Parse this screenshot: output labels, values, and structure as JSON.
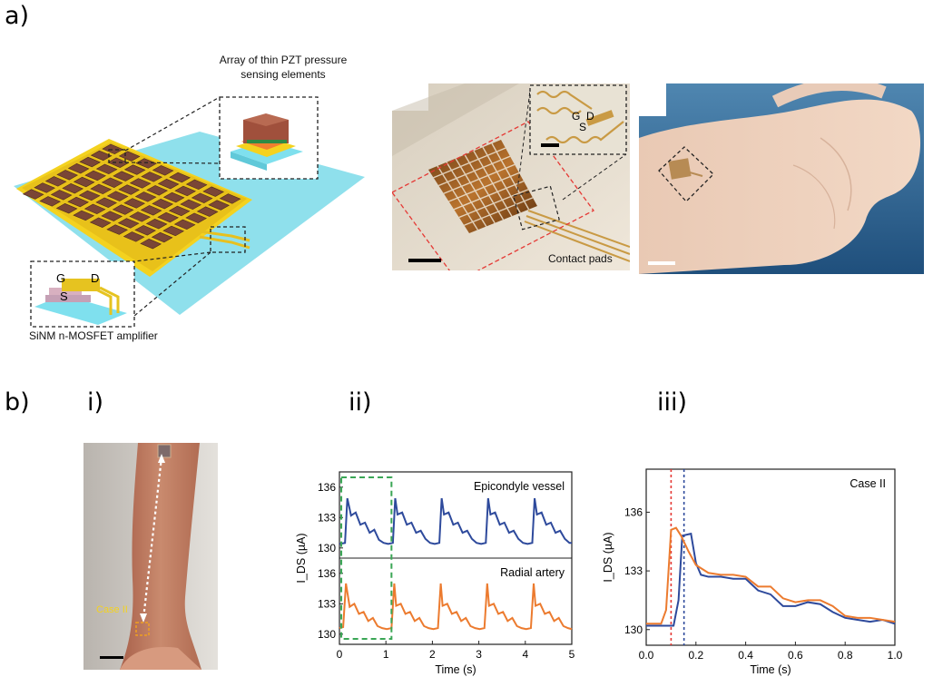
{
  "panel_a": {
    "label": "a)",
    "schematic": {
      "callout_top": [
        "Array of thin PZT pressure",
        "sensing elements"
      ],
      "callout_bottom": "SiNM n-MOSFET amplifier",
      "terminal_g": "G",
      "terminal_d": "D",
      "terminal_s": "S"
    },
    "photo_device": {
      "inset_g": "G",
      "inset_d": "D",
      "inset_s": "S",
      "caption": "Contact pads"
    }
  },
  "panel_b": {
    "label": "b)",
    "i": {
      "label": "i)",
      "annotation": "Case II"
    },
    "ii": {
      "label": "ii)"
    },
    "iii": {
      "label": "iii)"
    }
  },
  "colors": {
    "blue": "#2e4a9c",
    "orange": "#ec7b2f",
    "green_dash": "#3aa655",
    "red_dash": "#e53935"
  },
  "chart_data": [
    {
      "type": "line",
      "panel": "b-ii-top",
      "annotation": "Epicondyle vessel",
      "xlabel": "Time (s)",
      "ylabel": "I_DS (µA)",
      "xlim": [
        0,
        5
      ],
      "ylim": [
        129,
        137.5
      ],
      "yticks": [
        130,
        133,
        136
      ],
      "xticks": [
        0,
        1,
        2,
        3,
        4,
        5
      ],
      "series": [
        {
          "color": "#2e4a9c",
          "x": [
            0,
            0.12,
            0.17,
            0.25,
            0.35,
            0.45,
            0.55,
            0.65,
            0.75,
            0.85,
            0.95,
            1.05,
            1.15,
            1.2,
            1.25,
            1.35,
            1.45,
            1.55,
            1.65,
            1.75,
            1.85,
            1.95,
            2.05,
            2.15,
            2.2,
            2.25,
            2.35,
            2.45,
            2.55,
            2.65,
            2.75,
            2.85,
            2.95,
            3.05,
            3.15,
            3.2,
            3.25,
            3.35,
            3.45,
            3.55,
            3.65,
            3.75,
            3.85,
            3.95,
            4.05,
            4.15,
            4.2,
            4.25,
            4.35,
            4.45,
            4.55,
            4.65,
            4.75,
            4.85,
            4.95,
            5.0
          ],
          "y": [
            130.4,
            130.5,
            134.9,
            133.2,
            133.5,
            132.3,
            132.5,
            131.5,
            131.8,
            130.8,
            130.5,
            130.4,
            130.5,
            134.9,
            133.3,
            133.5,
            132.3,
            132.5,
            131.5,
            131.7,
            130.9,
            130.5,
            130.4,
            130.5,
            134.9,
            133.3,
            133.5,
            132.3,
            132.5,
            131.5,
            131.7,
            130.9,
            130.5,
            130.4,
            130.5,
            134.9,
            133.3,
            133.5,
            132.3,
            132.5,
            131.5,
            131.7,
            130.9,
            130.5,
            130.4,
            130.5,
            134.9,
            133.3,
            133.5,
            132.3,
            132.5,
            131.5,
            131.7,
            130.9,
            130.5,
            130.5
          ]
        }
      ]
    },
    {
      "type": "line",
      "panel": "b-ii-bottom",
      "annotation": "Radial artery",
      "xlabel": "Time (s)",
      "ylabel": "I_DS (µA)",
      "xlim": [
        0,
        5
      ],
      "ylim": [
        129,
        137.5
      ],
      "yticks": [
        130,
        133,
        136
      ],
      "xticks": [
        0,
        1,
        2,
        3,
        4,
        5
      ],
      "series": [
        {
          "color": "#ec7b2f",
          "x": [
            0,
            0.08,
            0.14,
            0.22,
            0.32,
            0.42,
            0.52,
            0.62,
            0.72,
            0.82,
            0.92,
            1.02,
            1.12,
            1.18,
            1.22,
            1.32,
            1.42,
            1.52,
            1.62,
            1.72,
            1.82,
            1.92,
            2.02,
            2.12,
            2.18,
            2.22,
            2.32,
            2.42,
            2.52,
            2.62,
            2.72,
            2.82,
            2.92,
            3.02,
            3.12,
            3.18,
            3.22,
            3.32,
            3.42,
            3.52,
            3.62,
            3.72,
            3.82,
            3.92,
            4.02,
            4.12,
            4.18,
            4.22,
            4.32,
            4.42,
            4.52,
            4.62,
            4.72,
            4.82,
            4.92,
            5.0
          ],
          "y": [
            130.6,
            130.7,
            135.0,
            132.7,
            133.0,
            132.0,
            132.2,
            131.3,
            131.6,
            130.8,
            130.6,
            130.5,
            130.6,
            135.0,
            132.8,
            133.0,
            132.0,
            132.2,
            131.3,
            131.6,
            130.8,
            130.6,
            130.5,
            130.6,
            135.0,
            132.8,
            133.0,
            132.0,
            132.2,
            131.3,
            131.6,
            130.8,
            130.6,
            130.5,
            130.6,
            135.0,
            132.8,
            133.0,
            132.0,
            132.2,
            131.3,
            131.6,
            130.8,
            130.6,
            130.5,
            130.6,
            135.0,
            132.8,
            133.0,
            132.0,
            132.2,
            131.3,
            131.6,
            130.8,
            130.6,
            130.5
          ]
        }
      ]
    },
    {
      "type": "line",
      "panel": "b-iii",
      "annotation": "Case II",
      "xlabel": "Time (s)",
      "ylabel": "I_DS (µA)",
      "xlim": [
        0,
        1.0
      ],
      "ylim": [
        129.2,
        138.2
      ],
      "yticks": [
        130,
        133,
        136
      ],
      "xticks": [
        0.0,
        0.2,
        0.4,
        0.6,
        0.8,
        1.0
      ],
      "vlines": [
        {
          "x": 0.1,
          "color": "#e53935"
        },
        {
          "x": 0.152,
          "color": "#2e4a9c"
        }
      ],
      "series": [
        {
          "color": "#2e4a9c",
          "x": [
            0,
            0.11,
            0.13,
            0.145,
            0.18,
            0.2,
            0.22,
            0.25,
            0.3,
            0.35,
            0.4,
            0.45,
            0.5,
            0.55,
            0.6,
            0.65,
            0.7,
            0.75,
            0.8,
            0.85,
            0.9,
            0.95,
            1.0
          ],
          "y": [
            130.2,
            130.2,
            131.5,
            134.8,
            134.9,
            133.4,
            132.8,
            132.7,
            132.7,
            132.6,
            132.6,
            132.0,
            131.8,
            131.2,
            131.2,
            131.4,
            131.3,
            130.9,
            130.6,
            130.5,
            130.4,
            130.5,
            130.3
          ]
        },
        {
          "color": "#ec7b2f",
          "x": [
            0,
            0.06,
            0.08,
            0.1,
            0.12,
            0.14,
            0.17,
            0.2,
            0.25,
            0.3,
            0.35,
            0.4,
            0.45,
            0.5,
            0.55,
            0.6,
            0.65,
            0.7,
            0.75,
            0.8,
            0.85,
            0.9,
            0.95,
            1.0
          ],
          "y": [
            130.3,
            130.3,
            131.0,
            135.1,
            135.2,
            134.8,
            134.0,
            133.3,
            132.9,
            132.8,
            132.8,
            132.7,
            132.2,
            132.2,
            131.6,
            131.4,
            131.5,
            131.5,
            131.2,
            130.7,
            130.6,
            130.6,
            130.5,
            130.4
          ]
        }
      ]
    }
  ]
}
